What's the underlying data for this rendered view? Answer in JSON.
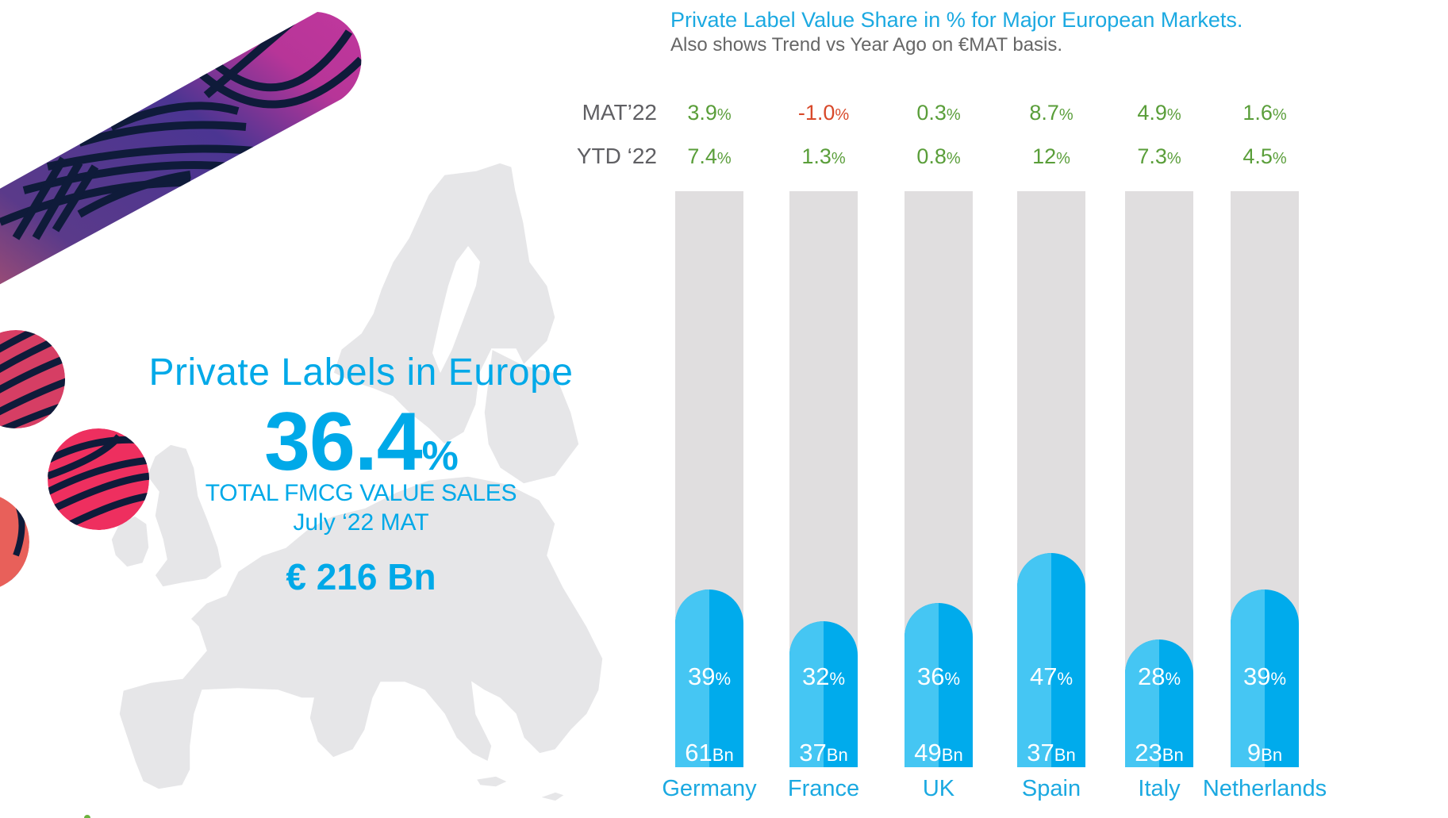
{
  "hero": {
    "title": "Private Labels in Europe",
    "value": "36.4",
    "value_unit": "%",
    "subtitle_line1": "TOTAL FMCG VALUE SALES",
    "subtitle_line2": "July ‘22 MAT",
    "total": "€ 216 Bn"
  },
  "row_labels": {
    "mat": "MAT’22",
    "ytd": "YTD ‘22"
  },
  "colors": {
    "accent_blue": "#1BA9E1",
    "bar_light": "#45C6F3",
    "bar_dark": "#00ABEC",
    "track": "#E0DEDF",
    "positive": "#5A9E3A",
    "negative": "#D8492A"
  },
  "chart_data": {
    "type": "bar",
    "title": "Private Label Value Share in % for Major European Markets.",
    "subtitle": "Also shows Trend vs Year Ago on €MAT basis.",
    "xlabel": "",
    "ylabel": "",
    "ylim": [
      0,
      100
    ],
    "categories": [
      "Germany",
      "France",
      "UK",
      "Spain",
      "Italy",
      "Netherlands"
    ],
    "series": [
      {
        "name": "Private Label Value Share",
        "unit": "%",
        "values": [
          39,
          32,
          36,
          47,
          28,
          39
        ]
      },
      {
        "name": "Value Sales",
        "unit": "Bn",
        "values": [
          61,
          37,
          49,
          37,
          23,
          9
        ]
      },
      {
        "name": "MAT’22",
        "unit": "%",
        "values": [
          "3.9",
          "-1.0",
          "0.3",
          "8.7",
          "4.9",
          "1.6"
        ]
      },
      {
        "name": "YTD ‘22",
        "unit": "%",
        "values": [
          "7.4",
          "1.3",
          "0.8",
          "12",
          "7.3",
          "4.5"
        ]
      }
    ]
  }
}
